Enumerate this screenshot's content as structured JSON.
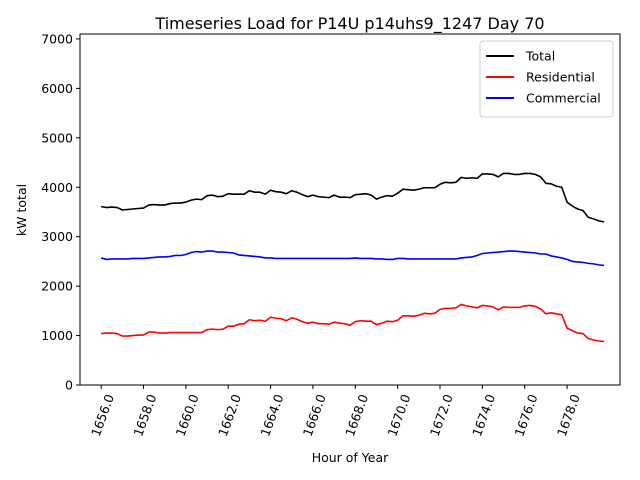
{
  "chart_data": {
    "type": "line",
    "title": "Timeseries Load for P14U p14uhs9_1247  Day 70",
    "xlabel": "Hour of Year",
    "ylabel": "kW total",
    "xlim": [
      1655.0,
      1680.5
    ],
    "ylim": [
      0,
      7100
    ],
    "xticks": [
      1656,
      1658,
      1660,
      1662,
      1664,
      1666,
      1668,
      1670,
      1672,
      1674,
      1676,
      1678
    ],
    "xtick_labels": [
      "1656.0",
      "1658.0",
      "1660.0",
      "1662.0",
      "1664.0",
      "1666.0",
      "1668.0",
      "1670.0",
      "1672.0",
      "1674.0",
      "1676.0",
      "1678.0"
    ],
    "yticks": [
      0,
      1000,
      2000,
      3000,
      4000,
      5000,
      6000,
      7000
    ],
    "ytick_labels": [
      "0",
      "1000",
      "2000",
      "3000",
      "4000",
      "5000",
      "6000",
      "7000"
    ],
    "legend": "top-right",
    "x_start": 1656.0,
    "x_step": 0.25,
    "series": [
      {
        "name": "Total",
        "color": "#000000",
        "values": [
          3610,
          3590,
          3600,
          3590,
          3540,
          3550,
          3560,
          3570,
          3580,
          3640,
          3650,
          3640,
          3640,
          3670,
          3680,
          3680,
          3700,
          3740,
          3760,
          3750,
          3830,
          3840,
          3810,
          3820,
          3870,
          3860,
          3860,
          3860,
          3930,
          3900,
          3900,
          3860,
          3940,
          3910,
          3900,
          3870,
          3930,
          3900,
          3850,
          3810,
          3840,
          3810,
          3800,
          3790,
          3840,
          3800,
          3800,
          3790,
          3850,
          3860,
          3870,
          3840,
          3760,
          3800,
          3830,
          3820,
          3880,
          3960,
          3950,
          3940,
          3960,
          3990,
          3990,
          3990,
          4060,
          4100,
          4090,
          4100,
          4200,
          4180,
          4190,
          4180,
          4270,
          4270,
          4260,
          4210,
          4280,
          4280,
          4260,
          4260,
          4280,
          4280,
          4260,
          4210,
          4080,
          4070,
          4020,
          4000,
          3700,
          3620,
          3560,
          3530,
          3390,
          3360,
          3320,
          3300
        ]
      },
      {
        "name": "Residential",
        "color": "#ff0000",
        "values": [
          1040,
          1050,
          1050,
          1040,
          990,
          990,
          1000,
          1010,
          1010,
          1070,
          1070,
          1050,
          1050,
          1060,
          1060,
          1060,
          1060,
          1060,
          1060,
          1060,
          1120,
          1130,
          1120,
          1130,
          1190,
          1190,
          1230,
          1240,
          1320,
          1300,
          1310,
          1290,
          1370,
          1350,
          1340,
          1300,
          1360,
          1330,
          1280,
          1250,
          1270,
          1240,
          1240,
          1230,
          1270,
          1250,
          1240,
          1210,
          1280,
          1300,
          1290,
          1290,
          1220,
          1250,
          1290,
          1280,
          1310,
          1400,
          1400,
          1390,
          1410,
          1450,
          1440,
          1450,
          1530,
          1550,
          1550,
          1560,
          1630,
          1600,
          1580,
          1560,
          1610,
          1600,
          1580,
          1520,
          1580,
          1570,
          1570,
          1570,
          1600,
          1610,
          1590,
          1540,
          1440,
          1460,
          1440,
          1420,
          1150,
          1100,
          1050,
          1040,
          940,
          910,
          890,
          880
        ]
      },
      {
        "name": "Commercial",
        "color": "#0000ff",
        "values": [
          2570,
          2540,
          2550,
          2550,
          2550,
          2550,
          2560,
          2560,
          2560,
          2570,
          2580,
          2590,
          2590,
          2600,
          2620,
          2620,
          2640,
          2680,
          2700,
          2690,
          2710,
          2710,
          2690,
          2690,
          2680,
          2670,
          2630,
          2620,
          2610,
          2600,
          2590,
          2570,
          2570,
          2560,
          2560,
          2560,
          2560,
          2560,
          2560,
          2560,
          2560,
          2560,
          2560,
          2560,
          2560,
          2560,
          2560,
          2560,
          2570,
          2560,
          2560,
          2560,
          2550,
          2550,
          2540,
          2540,
          2560,
          2560,
          2550,
          2550,
          2550,
          2550,
          2550,
          2550,
          2550,
          2550,
          2550,
          2550,
          2570,
          2580,
          2590,
          2620,
          2660,
          2670,
          2680,
          2690,
          2700,
          2710,
          2710,
          2700,
          2690,
          2680,
          2670,
          2650,
          2650,
          2610,
          2590,
          2570,
          2540,
          2500,
          2490,
          2480,
          2460,
          2450,
          2430,
          2420
        ]
      }
    ]
  }
}
